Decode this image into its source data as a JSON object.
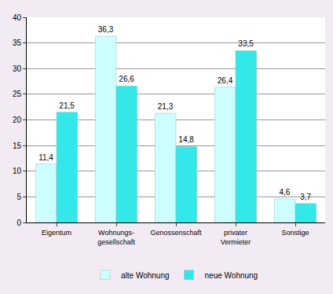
{
  "chart_data": {
    "type": "bar",
    "categories": [
      "Eigentum",
      "Wohnungs-\ngesellschaft",
      "Genossenschaft",
      "privater\nVermieter",
      "Sonstige"
    ],
    "series": [
      {
        "name": "alte Wohnung",
        "color": "#ccffff",
        "values": [
          11.4,
          36.3,
          21.3,
          26.4,
          4.6
        ],
        "value_labels": [
          "11,4",
          "36,3",
          "21,3",
          "26,4",
          "4,6"
        ]
      },
      {
        "name": "neue Wohnung",
        "color": "#33e8e8",
        "values": [
          21.5,
          26.6,
          14.8,
          33.5,
          3.7
        ],
        "value_labels": [
          "21,5",
          "26,6",
          "14,8",
          "33,5",
          "3,7"
        ]
      }
    ],
    "ylim": [
      0,
      40
    ],
    "yticks": [
      0,
      5,
      10,
      15,
      20,
      25,
      30,
      35,
      40
    ],
    "grid": true,
    "data_labels": true,
    "legend": "bottom"
  }
}
